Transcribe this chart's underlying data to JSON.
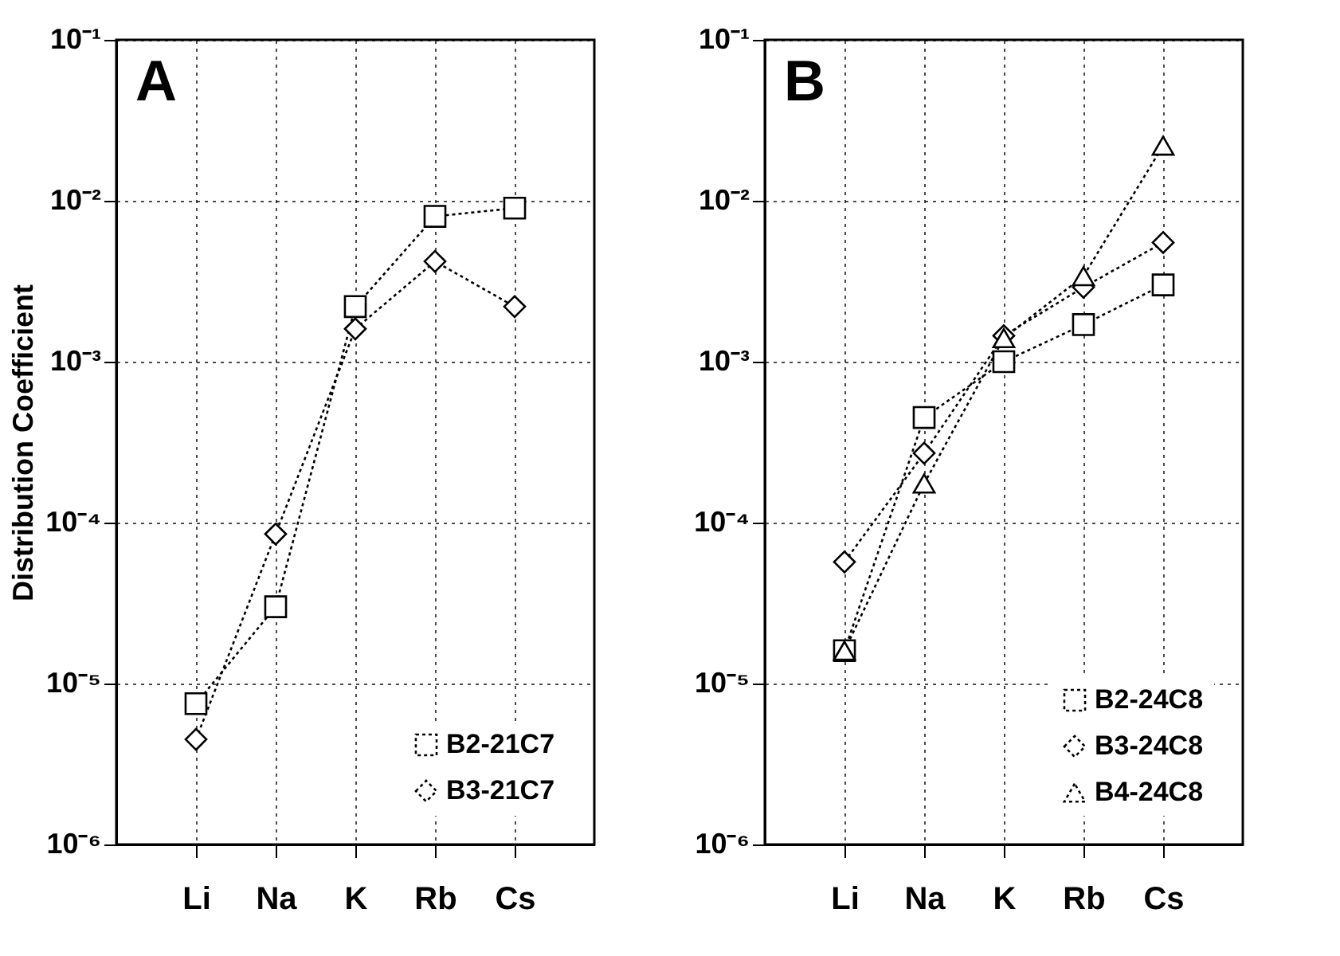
{
  "chart_data": [
    {
      "type": "line",
      "title": "A",
      "ylabel": "Distribution Coefficient",
      "categories": [
        "Li",
        "Na",
        "K",
        "Rb",
        "Cs"
      ],
      "log": "y",
      "ylim": [
        1e-06,
        0.1
      ],
      "yticks": [
        {
          "value": 1e-06,
          "label": "10⁻⁶"
        },
        {
          "value": 1e-05,
          "label": "10⁻⁵"
        },
        {
          "value": 0.0001,
          "label": "10⁻⁴"
        },
        {
          "value": 0.001,
          "label": "10⁻³"
        },
        {
          "value": 0.01,
          "label": "10⁻²"
        },
        {
          "value": 0.1,
          "label": "10⁻¹"
        }
      ],
      "grid": true,
      "legend": "bottom right",
      "line_style": "dotted",
      "series": [
        {
          "name": "B2-21C7",
          "color": "#000000",
          "marker": "square",
          "values": [
            7.5e-06,
            3e-05,
            0.0022,
            0.008,
            0.009
          ]
        },
        {
          "name": "B3-21C7",
          "color": "#000000",
          "marker": "diamond",
          "values": [
            4.5e-06,
            8.5e-05,
            0.0016,
            0.0042,
            0.0022
          ]
        }
      ]
    },
    {
      "type": "line",
      "title": "B",
      "categories": [
        "Li",
        "Na",
        "K",
        "Rb",
        "Cs"
      ],
      "log": "y",
      "ylim": [
        1e-06,
        0.1
      ],
      "yticks": [
        {
          "value": 1e-06,
          "label": "10⁻⁶"
        },
        {
          "value": 1e-05,
          "label": "10⁻⁵"
        },
        {
          "value": 0.0001,
          "label": "10⁻⁴"
        },
        {
          "value": 0.001,
          "label": "10⁻³"
        },
        {
          "value": 0.01,
          "label": "10⁻²"
        },
        {
          "value": 0.1,
          "label": "10⁻¹"
        }
      ],
      "grid": true,
      "legend": "bottom right",
      "line_style": "dotted",
      "series": [
        {
          "name": "B2-24C8",
          "color": "#000000",
          "marker": "square",
          "values": [
            1.6e-05,
            0.00045,
            0.001,
            0.0017,
            0.003
          ]
        },
        {
          "name": "B3-24C8",
          "color": "#000000",
          "marker": "diamond",
          "values": [
            5.7e-05,
            0.00027,
            0.00145,
            0.0029,
            0.0055
          ]
        },
        {
          "name": "B4-24C8",
          "color": "#000000",
          "marker": "triangle",
          "values": [
            1.6e-05,
            0.000175,
            0.0014,
            0.0034,
            0.022
          ]
        }
      ]
    }
  ]
}
